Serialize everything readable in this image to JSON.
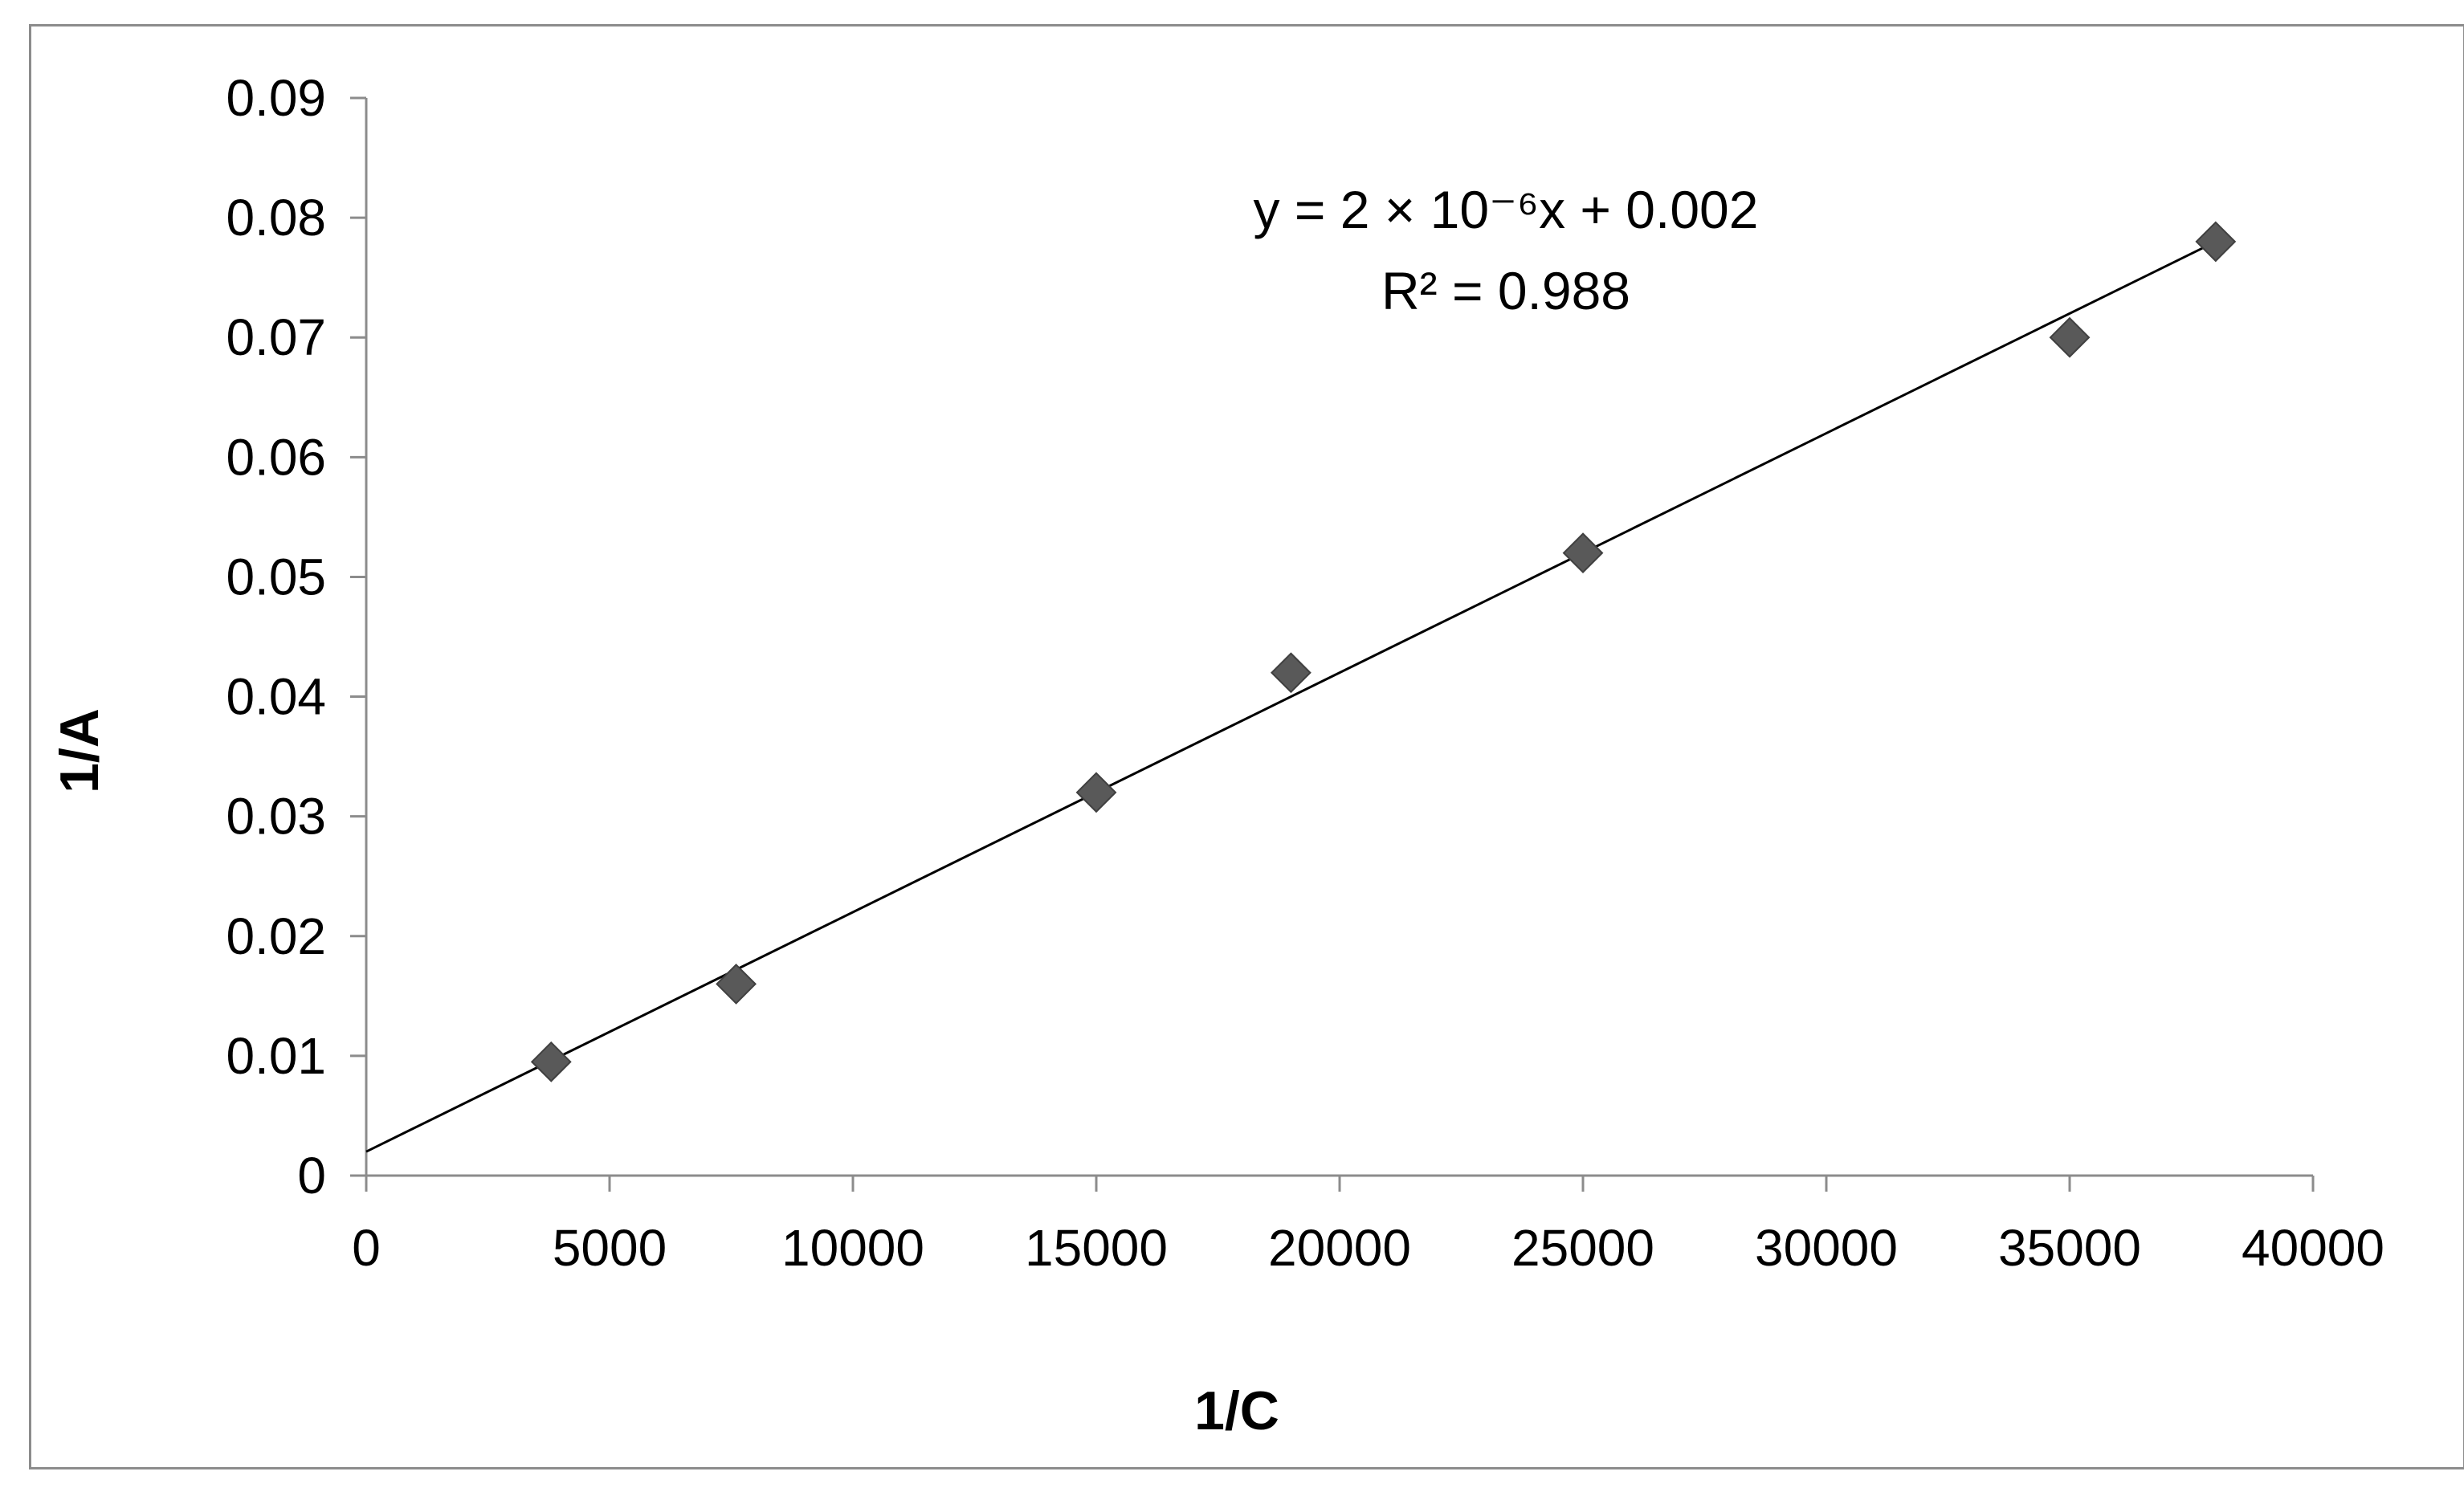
{
  "chart_data": {
    "type": "scatter",
    "title": "",
    "xlabel": "1/C",
    "ylabel": "1/A",
    "xlim": [
      0,
      40000
    ],
    "ylim": [
      0,
      0.09
    ],
    "x_ticks": [
      "0",
      "5000",
      "10000",
      "15000",
      "20000",
      "25000",
      "30000",
      "35000",
      "40000"
    ],
    "y_ticks": [
      "0",
      "0.01",
      "0.02",
      "0.03",
      "0.04",
      "0.05",
      "0.06",
      "0.07",
      "0.08",
      "0.09"
    ],
    "grid": false,
    "legend": "none",
    "series": [
      {
        "x": [
          3800,
          7600,
          15000,
          19000,
          25000,
          35000,
          38000
        ],
        "y": [
          0.0095,
          0.016,
          0.032,
          0.042,
          0.052,
          0.07,
          0.078
        ]
      }
    ],
    "trendline": {
      "slope": 2e-06,
      "intercept": 0.002,
      "x_range": [
        0,
        38000
      ],
      "equation_label": "y = 2 × 10⁻⁶x + 0.002",
      "r2_label": "R² = 0.988"
    },
    "colors": {
      "marker": "#595959",
      "line": "#000000",
      "axis": "#8c8c8c"
    }
  }
}
